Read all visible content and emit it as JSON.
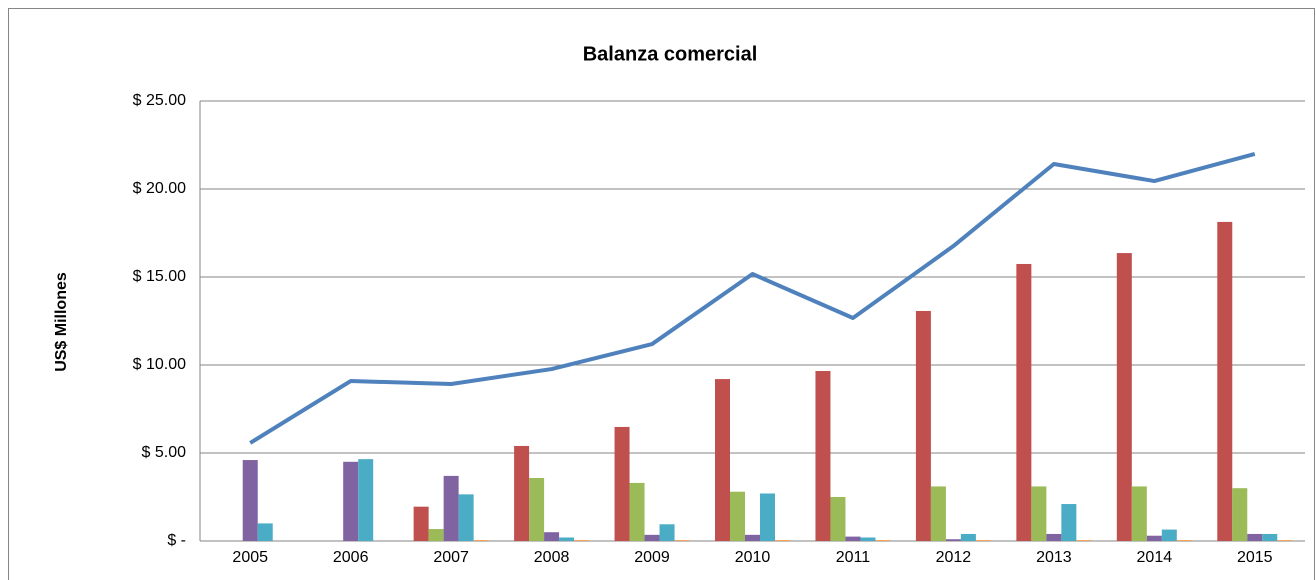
{
  "chart_data": {
    "type": "bar",
    "title": "Balanza comercial",
    "y_label": "US$ Millones",
    "categories": [
      "2005",
      "2006",
      "2007",
      "2008",
      "2009",
      "2010",
      "2011",
      "2012",
      "2013",
      "2014",
      "2015"
    ],
    "ylim": [
      0,
      25
    ],
    "yticks": [
      {
        "value": 0,
        "label": "$ -"
      },
      {
        "value": 5,
        "label": "$ 5.00"
      },
      {
        "value": 10,
        "label": "$ 10.00"
      },
      {
        "value": 15,
        "label": "$ 15.00"
      },
      {
        "value": 20,
        "label": "$ 20.00"
      },
      {
        "value": 25,
        "label": "$ 25.00"
      }
    ],
    "grid": true,
    "series": [
      {
        "color": "#c0504d",
        "values": [
          0,
          0,
          1.95,
          5.4,
          6.48,
          9.2,
          9.66,
          13.07,
          15.74,
          16.36,
          18.13
        ]
      },
      {
        "color": "#9bbb59",
        "values": [
          0,
          0,
          0.68,
          3.58,
          3.3,
          2.8,
          2.5,
          3.1,
          3.1,
          3.1,
          3.0
        ]
      },
      {
        "color": "#8064a2",
        "values": [
          4.6,
          4.5,
          3.7,
          0.5,
          0.35,
          0.35,
          0.25,
          0.1,
          0.4,
          0.3,
          0.4
        ]
      },
      {
        "color": "#4bacc6",
        "values": [
          1.0,
          4.65,
          2.65,
          0.2,
          0.95,
          2.7,
          0.2,
          0.4,
          2.1,
          0.65,
          0.4
        ]
      },
      {
        "color": "#f79646",
        "values": [
          0,
          0,
          0.05,
          0.05,
          0.05,
          0.05,
          0.05,
          0.05,
          0.05,
          0.05,
          0.05
        ]
      },
      {
        "type": "line",
        "color": "#4f81bd",
        "values": [
          5.57,
          9.09,
          8.92,
          9.77,
          11.19,
          15.17,
          12.67,
          16.76,
          21.42,
          20.45,
          21.99
        ]
      }
    ]
  }
}
